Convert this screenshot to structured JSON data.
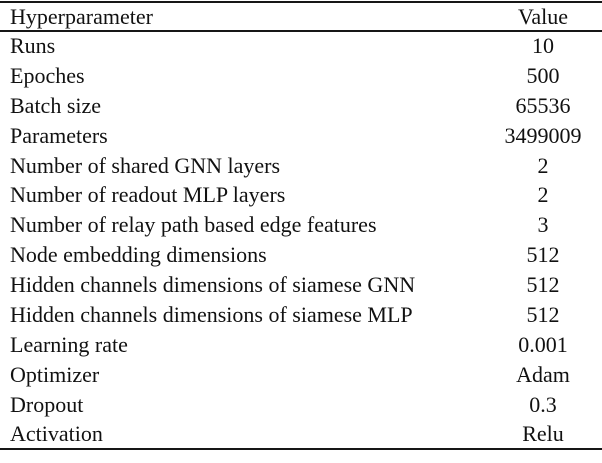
{
  "table": {
    "headers": {
      "hyperparameter": "Hyperparameter",
      "value": "Value"
    },
    "rows": [
      {
        "label": "Runs",
        "value": "10"
      },
      {
        "label": "Epoches",
        "value": "500"
      },
      {
        "label": "Batch size",
        "value": "65536"
      },
      {
        "label": "Parameters",
        "value": "3499009"
      },
      {
        "label": "Number of shared GNN layers",
        "value": "2"
      },
      {
        "label": "Number of readout MLP layers",
        "value": "2"
      },
      {
        "label": "Number of relay path based edge features",
        "value": "3"
      },
      {
        "label": "Node embedding dimensions",
        "value": "512"
      },
      {
        "label": "Hidden channels dimensions of siamese GNN",
        "value": "512"
      },
      {
        "label": "Hidden channels dimensions of siamese MLP",
        "value": "512"
      },
      {
        "label": "Learning rate",
        "value": "0.001"
      },
      {
        "label": "Optimizer",
        "value": "Adam"
      },
      {
        "label": "Dropout",
        "value": "0.3"
      },
      {
        "label": "Activation",
        "value": "Relu"
      }
    ],
    "text_color": "#111111",
    "rule_color": "#161616",
    "background_color": "#ffffff"
  }
}
